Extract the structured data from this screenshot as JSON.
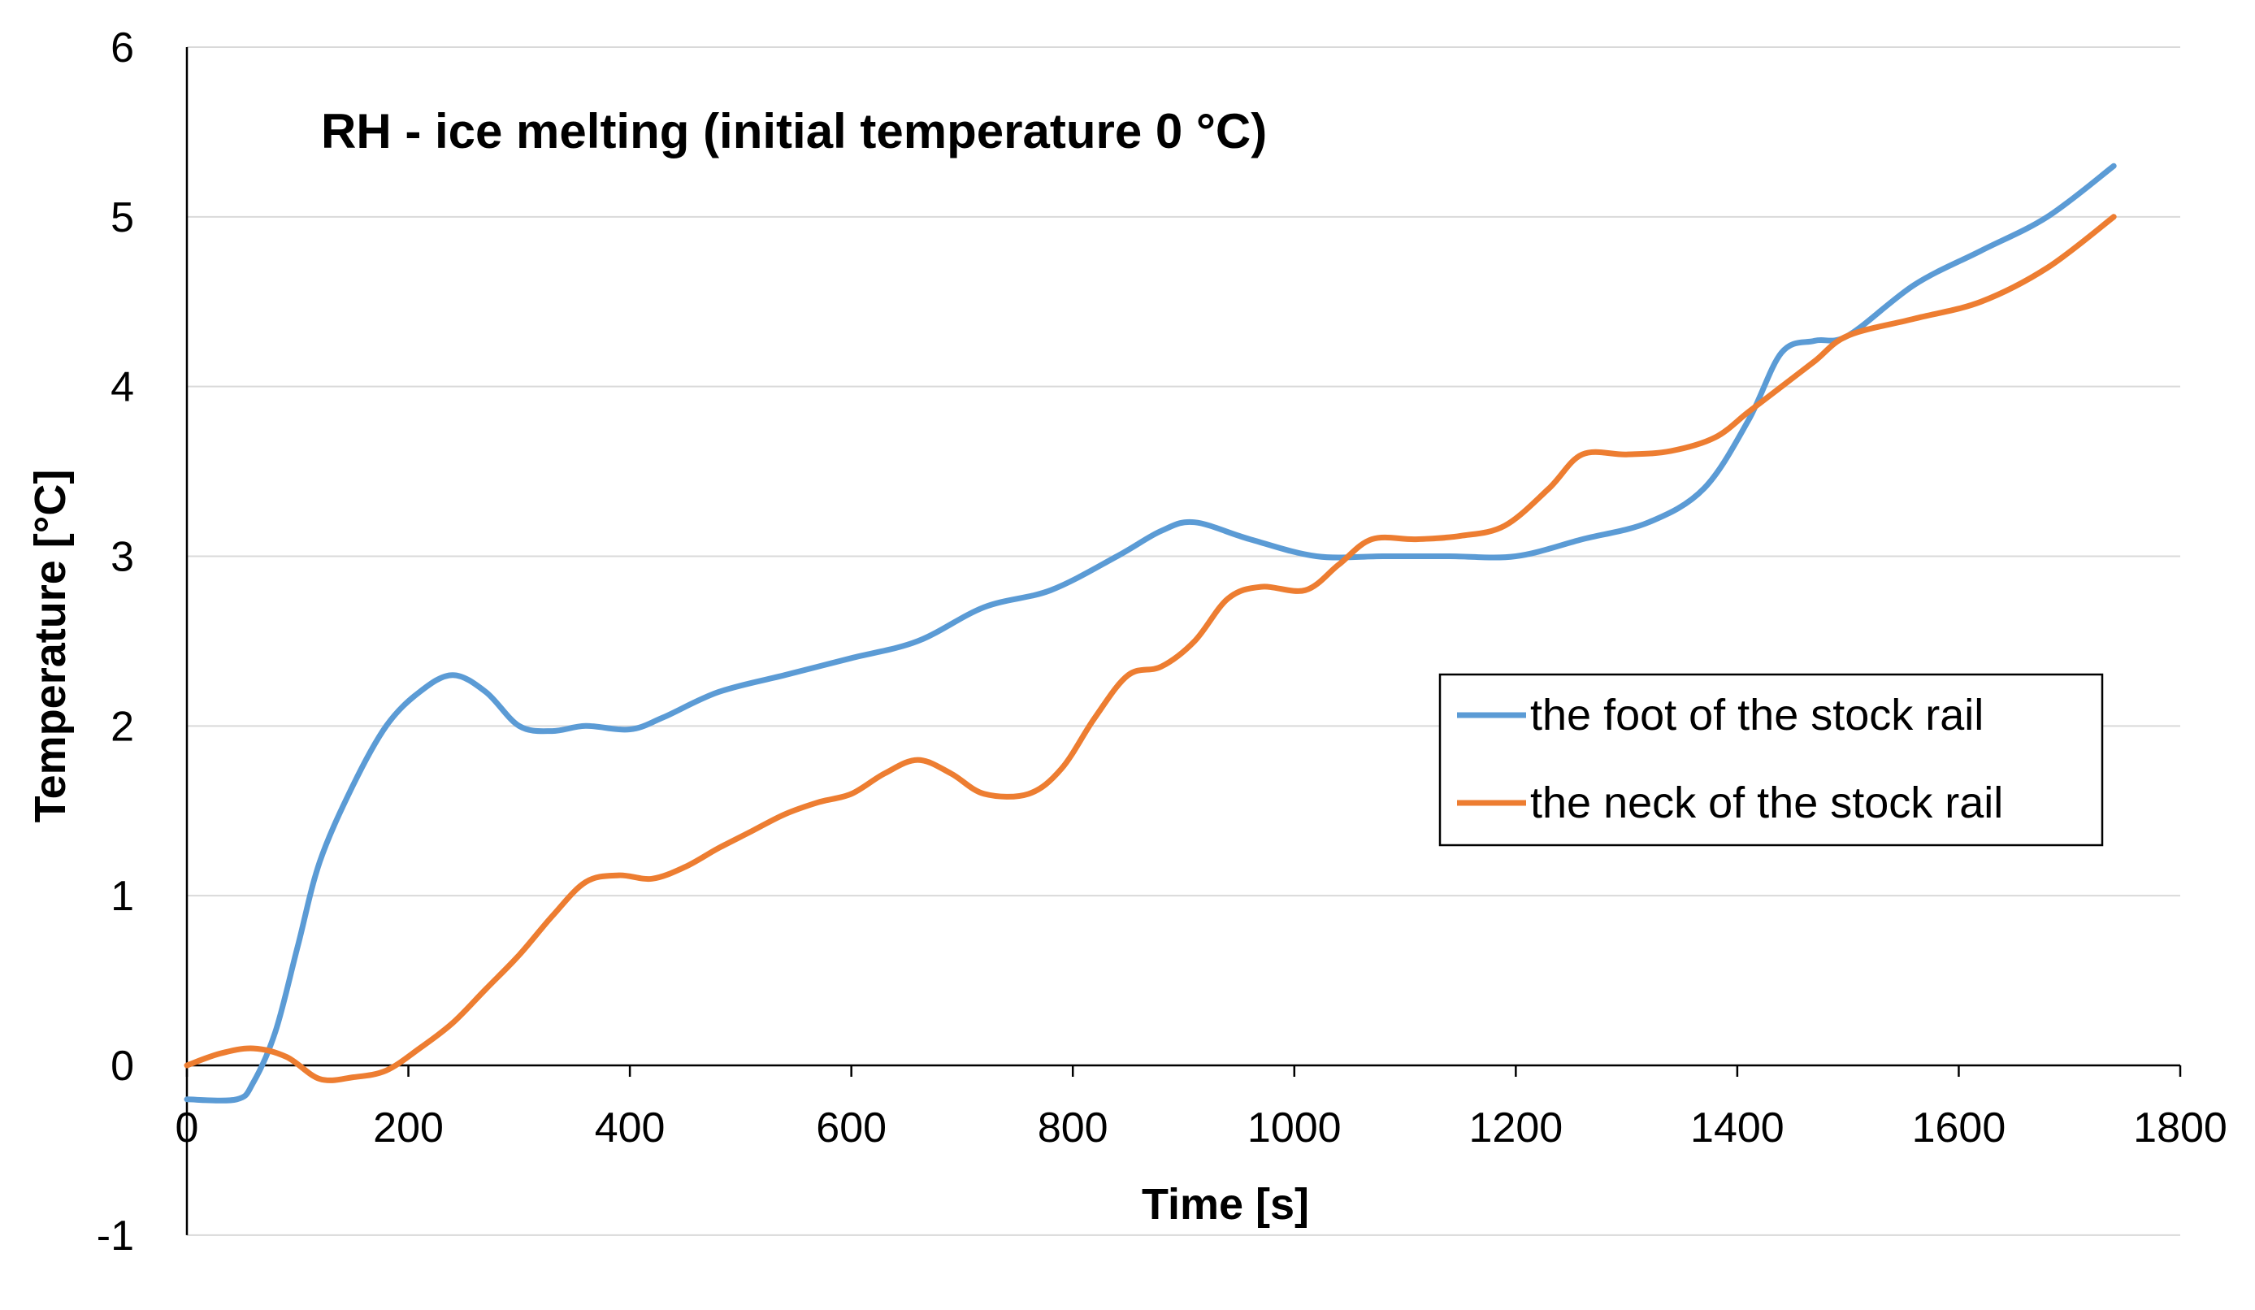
{
  "chart_data": {
    "type": "line",
    "title": "RH - ice melting (initial temperature 0 °C)",
    "xlabel": "Time [s]",
    "ylabel": "Temperature [°C]",
    "xlim": [
      0,
      1800
    ],
    "ylim": [
      -1,
      6
    ],
    "xticks": [
      0,
      200,
      400,
      600,
      800,
      1000,
      1200,
      1400,
      1600,
      1800
    ],
    "yticks": [
      -1,
      0,
      1,
      2,
      3,
      4,
      5,
      6
    ],
    "grid": "horizontal",
    "legend_position": "right",
    "series": [
      {
        "name": "the foot of the stock rail",
        "color": "#5B9BD5",
        "points": [
          [
            0,
            -0.2
          ],
          [
            45,
            -0.2
          ],
          [
            60,
            -0.1
          ],
          [
            80,
            0.2
          ],
          [
            100,
            0.7
          ],
          [
            120,
            1.2
          ],
          [
            150,
            1.65
          ],
          [
            180,
            2.0
          ],
          [
            210,
            2.2
          ],
          [
            240,
            2.3
          ],
          [
            270,
            2.2
          ],
          [
            300,
            2.0
          ],
          [
            330,
            1.97
          ],
          [
            360,
            2.0
          ],
          [
            400,
            1.98
          ],
          [
            430,
            2.05
          ],
          [
            480,
            2.2
          ],
          [
            540,
            2.3
          ],
          [
            600,
            2.4
          ],
          [
            660,
            2.5
          ],
          [
            720,
            2.7
          ],
          [
            780,
            2.8
          ],
          [
            840,
            3.0
          ],
          [
            880,
            3.15
          ],
          [
            910,
            3.2
          ],
          [
            960,
            3.1
          ],
          [
            1020,
            3.0
          ],
          [
            1080,
            3.0
          ],
          [
            1140,
            3.0
          ],
          [
            1200,
            3.0
          ],
          [
            1260,
            3.1
          ],
          [
            1320,
            3.2
          ],
          [
            1370,
            3.4
          ],
          [
            1410,
            3.8
          ],
          [
            1440,
            4.2
          ],
          [
            1470,
            4.27
          ],
          [
            1500,
            4.3
          ],
          [
            1560,
            4.6
          ],
          [
            1620,
            4.8
          ],
          [
            1680,
            5.0
          ],
          [
            1740,
            5.3
          ]
        ]
      },
      {
        "name": "the neck of the stock rail",
        "color": "#ED7D31",
        "points": [
          [
            0,
            0.0
          ],
          [
            30,
            0.07
          ],
          [
            60,
            0.1
          ],
          [
            90,
            0.05
          ],
          [
            120,
            -0.08
          ],
          [
            150,
            -0.07
          ],
          [
            180,
            -0.03
          ],
          [
            210,
            0.1
          ],
          [
            240,
            0.25
          ],
          [
            270,
            0.45
          ],
          [
            300,
            0.65
          ],
          [
            330,
            0.88
          ],
          [
            360,
            1.08
          ],
          [
            390,
            1.12
          ],
          [
            420,
            1.1
          ],
          [
            450,
            1.17
          ],
          [
            480,
            1.28
          ],
          [
            510,
            1.38
          ],
          [
            540,
            1.48
          ],
          [
            570,
            1.55
          ],
          [
            600,
            1.6
          ],
          [
            630,
            1.72
          ],
          [
            660,
            1.8
          ],
          [
            690,
            1.72
          ],
          [
            720,
            1.6
          ],
          [
            760,
            1.6
          ],
          [
            790,
            1.75
          ],
          [
            820,
            2.05
          ],
          [
            850,
            2.3
          ],
          [
            880,
            2.35
          ],
          [
            910,
            2.5
          ],
          [
            940,
            2.75
          ],
          [
            970,
            2.82
          ],
          [
            1010,
            2.8
          ],
          [
            1040,
            2.95
          ],
          [
            1070,
            3.1
          ],
          [
            1110,
            3.1
          ],
          [
            1150,
            3.12
          ],
          [
            1190,
            3.18
          ],
          [
            1230,
            3.4
          ],
          [
            1260,
            3.6
          ],
          [
            1300,
            3.6
          ],
          [
            1340,
            3.62
          ],
          [
            1380,
            3.7
          ],
          [
            1410,
            3.85
          ],
          [
            1440,
            4.0
          ],
          [
            1470,
            4.15
          ],
          [
            1500,
            4.3
          ],
          [
            1560,
            4.4
          ],
          [
            1620,
            4.5
          ],
          [
            1680,
            4.7
          ],
          [
            1740,
            5.0
          ]
        ]
      }
    ]
  }
}
